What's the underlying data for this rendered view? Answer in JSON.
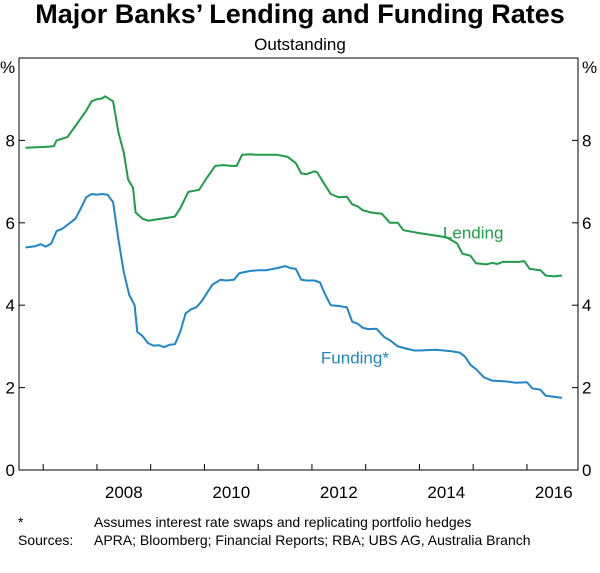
{
  "chart_data": {
    "type": "line",
    "title": "Major Banks’ Lending and Funding Rates",
    "subtitle": "Outstanding",
    "ylabel_left": "%",
    "ylabel_right": "%",
    "ylim": [
      0,
      10
    ],
    "yticks": [
      0,
      2,
      4,
      6,
      8
    ],
    "xlim": [
      2006.55,
      2016.95
    ],
    "xticks": [
      {
        "value": 2008,
        "label": "2008"
      },
      {
        "value": 2010,
        "label": "2010"
      },
      {
        "value": 2012,
        "label": "2012"
      },
      {
        "value": 2014,
        "label": "2014"
      },
      {
        "value": 2016,
        "label": "2016"
      }
    ],
    "grid": false,
    "series": [
      {
        "name": "Lending",
        "color": "#1f9c47",
        "points": [
          [
            2006.67,
            7.82
          ],
          [
            2007.0,
            7.84
          ],
          [
            2007.2,
            7.86
          ],
          [
            2007.25,
            8.0
          ],
          [
            2007.45,
            8.08
          ],
          [
            2007.6,
            8.35
          ],
          [
            2007.8,
            8.72
          ],
          [
            2007.9,
            8.95
          ],
          [
            2008.0,
            9.0
          ],
          [
            2008.1,
            9.02
          ],
          [
            2008.15,
            9.07
          ],
          [
            2008.3,
            8.95
          ],
          [
            2008.4,
            8.2
          ],
          [
            2008.5,
            7.7
          ],
          [
            2008.58,
            7.05
          ],
          [
            2008.67,
            6.85
          ],
          [
            2008.72,
            6.25
          ],
          [
            2008.85,
            6.1
          ],
          [
            2008.95,
            6.05
          ],
          [
            2009.1,
            6.08
          ],
          [
            2009.3,
            6.12
          ],
          [
            2009.45,
            6.15
          ],
          [
            2009.55,
            6.35
          ],
          [
            2009.7,
            6.75
          ],
          [
            2009.9,
            6.8
          ],
          [
            2010.05,
            7.1
          ],
          [
            2010.2,
            7.38
          ],
          [
            2010.35,
            7.4
          ],
          [
            2010.5,
            7.38
          ],
          [
            2010.6,
            7.38
          ],
          [
            2010.7,
            7.65
          ],
          [
            2010.85,
            7.66
          ],
          [
            2011.0,
            7.65
          ],
          [
            2011.2,
            7.65
          ],
          [
            2011.35,
            7.65
          ],
          [
            2011.55,
            7.6
          ],
          [
            2011.7,
            7.45
          ],
          [
            2011.8,
            7.2
          ],
          [
            2011.9,
            7.18
          ],
          [
            2012.05,
            7.25
          ],
          [
            2012.1,
            7.22
          ],
          [
            2012.25,
            6.9
          ],
          [
            2012.35,
            6.7
          ],
          [
            2012.5,
            6.62
          ],
          [
            2012.65,
            6.63
          ],
          [
            2012.75,
            6.45
          ],
          [
            2012.85,
            6.4
          ],
          [
            2012.95,
            6.3
          ],
          [
            2013.1,
            6.25
          ],
          [
            2013.3,
            6.22
          ],
          [
            2013.45,
            6.0
          ],
          [
            2013.6,
            6.0
          ],
          [
            2013.7,
            5.82
          ],
          [
            2014.0,
            5.75
          ],
          [
            2014.5,
            5.65
          ],
          [
            2014.7,
            5.5
          ],
          [
            2014.8,
            5.25
          ],
          [
            2014.95,
            5.2
          ],
          [
            2015.05,
            5.02
          ],
          [
            2015.25,
            4.99
          ],
          [
            2015.35,
            5.03
          ],
          [
            2015.45,
            5.0
          ],
          [
            2015.55,
            5.05
          ],
          [
            2015.7,
            5.05
          ],
          [
            2015.85,
            5.05
          ],
          [
            2015.95,
            5.07
          ],
          [
            2016.05,
            4.88
          ],
          [
            2016.25,
            4.85
          ],
          [
            2016.35,
            4.72
          ],
          [
            2016.5,
            4.7
          ],
          [
            2016.65,
            4.72
          ]
        ]
      },
      {
        "name": "Funding*",
        "color": "#1f87c6",
        "points": [
          [
            2006.67,
            5.4
          ],
          [
            2006.85,
            5.43
          ],
          [
            2006.95,
            5.48
          ],
          [
            2007.05,
            5.42
          ],
          [
            2007.15,
            5.5
          ],
          [
            2007.25,
            5.8
          ],
          [
            2007.35,
            5.85
          ],
          [
            2007.5,
            6.0
          ],
          [
            2007.6,
            6.1
          ],
          [
            2007.7,
            6.35
          ],
          [
            2007.8,
            6.62
          ],
          [
            2007.9,
            6.7
          ],
          [
            2008.0,
            6.68
          ],
          [
            2008.1,
            6.7
          ],
          [
            2008.2,
            6.68
          ],
          [
            2008.3,
            6.5
          ],
          [
            2008.4,
            5.6
          ],
          [
            2008.5,
            4.8
          ],
          [
            2008.6,
            4.25
          ],
          [
            2008.7,
            4.0
          ],
          [
            2008.75,
            3.35
          ],
          [
            2008.85,
            3.25
          ],
          [
            2008.95,
            3.08
          ],
          [
            2009.05,
            3.02
          ],
          [
            2009.15,
            3.03
          ],
          [
            2009.25,
            2.98
          ],
          [
            2009.35,
            3.04
          ],
          [
            2009.45,
            3.05
          ],
          [
            2009.55,
            3.35
          ],
          [
            2009.65,
            3.8
          ],
          [
            2009.75,
            3.9
          ],
          [
            2009.85,
            3.95
          ],
          [
            2009.95,
            4.1
          ],
          [
            2010.05,
            4.3
          ],
          [
            2010.15,
            4.5
          ],
          [
            2010.3,
            4.62
          ],
          [
            2010.4,
            4.6
          ],
          [
            2010.55,
            4.62
          ],
          [
            2010.65,
            4.78
          ],
          [
            2010.85,
            4.83
          ],
          [
            2011.0,
            4.85
          ],
          [
            2011.15,
            4.85
          ],
          [
            2011.35,
            4.9
          ],
          [
            2011.5,
            4.95
          ],
          [
            2011.6,
            4.9
          ],
          [
            2011.7,
            4.88
          ],
          [
            2011.8,
            4.62
          ],
          [
            2011.9,
            4.6
          ],
          [
            2012.05,
            4.6
          ],
          [
            2012.15,
            4.55
          ],
          [
            2012.25,
            4.25
          ],
          [
            2012.35,
            4.0
          ],
          [
            2012.5,
            3.98
          ],
          [
            2012.65,
            3.95
          ],
          [
            2012.75,
            3.6
          ],
          [
            2012.85,
            3.55
          ],
          [
            2012.95,
            3.45
          ],
          [
            2013.05,
            3.42
          ],
          [
            2013.2,
            3.43
          ],
          [
            2013.35,
            3.22
          ],
          [
            2013.45,
            3.15
          ],
          [
            2013.6,
            3.0
          ],
          [
            2013.75,
            2.95
          ],
          [
            2013.9,
            2.9
          ],
          [
            2014.0,
            2.9
          ],
          [
            2014.3,
            2.92
          ],
          [
            2014.6,
            2.88
          ],
          [
            2014.75,
            2.85
          ],
          [
            2014.85,
            2.75
          ],
          [
            2014.95,
            2.55
          ],
          [
            2015.05,
            2.45
          ],
          [
            2015.2,
            2.25
          ],
          [
            2015.35,
            2.17
          ],
          [
            2015.6,
            2.15
          ],
          [
            2015.8,
            2.12
          ],
          [
            2016.0,
            2.13
          ],
          [
            2016.1,
            1.98
          ],
          [
            2016.25,
            1.95
          ],
          [
            2016.35,
            1.8
          ],
          [
            2016.5,
            1.78
          ],
          [
            2016.65,
            1.75
          ]
        ]
      }
    ],
    "annotations": [
      {
        "text": "Lending",
        "series": "Lending",
        "at": [
          2015.0,
          5.62
        ]
      },
      {
        "text": "Funding*",
        "series": "Funding*",
        "at": [
          2012.8,
          2.58
        ]
      }
    ]
  },
  "notes": [
    {
      "key": "*",
      "text": "Assumes interest rate swaps and replicating portfolio hedges"
    },
    {
      "key": "Sources:",
      "text": "APRA; Bloomberg; Financial Reports; RBA; UBS AG, Australia Branch"
    }
  ]
}
